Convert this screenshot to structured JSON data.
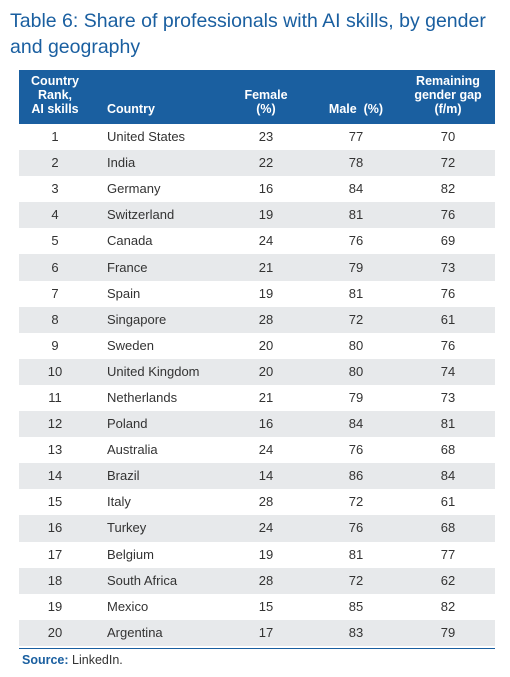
{
  "chart_data": {
    "type": "table",
    "title": "Table 6: Share of professionals with AI skills, by gender and geography",
    "columns": [
      "Country Rank, AI skills",
      "Country",
      "Female (%)",
      "Male  (%)",
      "Remaining gender gap (f/m)"
    ],
    "rows": [
      [
        "1",
        "United States",
        "23",
        "77",
        "70"
      ],
      [
        "2",
        "India",
        "22",
        "78",
        "72"
      ],
      [
        "3",
        "Germany",
        "16",
        "84",
        "82"
      ],
      [
        "4",
        "Switzerland",
        "19",
        "81",
        "76"
      ],
      [
        "5",
        "Canada",
        "24",
        "76",
        "69"
      ],
      [
        "6",
        "France",
        "21",
        "79",
        "73"
      ],
      [
        "7",
        "Spain",
        "19",
        "81",
        "76"
      ],
      [
        "8",
        "Singapore",
        "28",
        "72",
        "61"
      ],
      [
        "9",
        "Sweden",
        "20",
        "80",
        "76"
      ],
      [
        "10",
        "United Kingdom",
        "20",
        "80",
        "74"
      ],
      [
        "11",
        "Netherlands",
        "21",
        "79",
        "73"
      ],
      [
        "12",
        "Poland",
        "16",
        "84",
        "81"
      ],
      [
        "13",
        "Australia",
        "24",
        "76",
        "68"
      ],
      [
        "14",
        "Brazil",
        "14",
        "86",
        "84"
      ],
      [
        "15",
        "Italy",
        "28",
        "72",
        "61"
      ],
      [
        "16",
        "Turkey",
        "24",
        "76",
        "68"
      ],
      [
        "17",
        "Belgium",
        "19",
        "81",
        "77"
      ],
      [
        "18",
        "South Africa",
        "28",
        "72",
        "62"
      ],
      [
        "19",
        "Mexico",
        "15",
        "85",
        "82"
      ],
      [
        "20",
        "Argentina",
        "17",
        "83",
        "79"
      ]
    ],
    "header_color": "#1a5fa0",
    "stripe_color": "#e7e9eb"
  },
  "header": {
    "rank_line1": "Country",
    "rank_line2": "Rank,",
    "rank_line3": "AI skills",
    "country": "Country",
    "female_line1": "Female",
    "female_line2": "(%)",
    "male": "Male  (%)",
    "gap_line1": "Remaining",
    "gap_line2": "gender gap",
    "gap_line3": "(f/m)"
  },
  "source": {
    "label": "Source:",
    "text": " LinkedIn."
  }
}
